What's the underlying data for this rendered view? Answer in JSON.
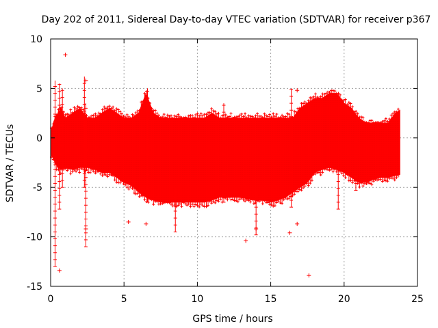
{
  "chart_data": {
    "type": "scatter",
    "title": "Day 202 of 2011, Sidereal Day-to-day VTEC variation (SDTVAR) for receiver p367",
    "xlabel": "GPS time / hours",
    "ylabel": "SDTVAR / TECUs",
    "xlim": [
      0,
      25
    ],
    "ylim": [
      -15,
      10
    ],
    "x_ticks": [
      0,
      5,
      10,
      15,
      20,
      25
    ],
    "x_tick_labels": [
      "0",
      "5",
      "10",
      "15",
      "20",
      "25"
    ],
    "y_ticks": [
      -15,
      -10,
      -5,
      0,
      5,
      10
    ],
    "y_tick_labels": [
      "-15",
      "-10",
      "-5",
      "0",
      "5",
      "10"
    ],
    "grid": true,
    "series_color": "#ff0000",
    "band_envelope": {
      "x": [
        0.0,
        0.3,
        0.5,
        0.7,
        1.0,
        1.5,
        2.0,
        2.5,
        3.0,
        3.5,
        4.0,
        4.5,
        5.0,
        5.5,
        6.0,
        6.5,
        7.0,
        7.5,
        8.0,
        8.5,
        9.0,
        9.5,
        10.0,
        10.5,
        11.0,
        11.5,
        12.0,
        12.5,
        13.0,
        13.5,
        14.0,
        14.5,
        15.0,
        15.5,
        16.0,
        16.5,
        17.0,
        17.5,
        18.0,
        18.5,
        19.0,
        19.5,
        20.0,
        20.5,
        21.0,
        21.5,
        22.0,
        22.5,
        23.0,
        23.5,
        23.8
      ],
      "upper": [
        0.5,
        2.0,
        2.5,
        3.0,
        2.0,
        2.5,
        3.0,
        2.0,
        2.0,
        2.5,
        3.0,
        2.5,
        2.0,
        2.0,
        2.5,
        4.5,
        2.5,
        2.0,
        2.0,
        2.0,
        2.0,
        2.0,
        2.0,
        2.0,
        2.5,
        2.0,
        2.0,
        2.0,
        2.0,
        2.0,
        2.0,
        2.0,
        2.0,
        2.0,
        2.0,
        2.0,
        3.0,
        3.5,
        4.0,
        4.0,
        4.5,
        4.5,
        3.5,
        3.0,
        2.0,
        1.5,
        1.5,
        1.5,
        1.5,
        2.5,
        2.8
      ],
      "lower": [
        -1.5,
        -2.5,
        -3.0,
        -3.2,
        -3.0,
        -3.2,
        -3.0,
        -3.0,
        -3.2,
        -3.5,
        -3.5,
        -4.0,
        -4.5,
        -4.8,
        -5.5,
        -6.0,
        -6.3,
        -6.5,
        -6.5,
        -6.5,
        -6.5,
        -6.5,
        -6.5,
        -6.5,
        -6.3,
        -6.0,
        -6.0,
        -6.0,
        -6.0,
        -6.2,
        -6.3,
        -6.3,
        -6.5,
        -6.3,
        -6.0,
        -5.5,
        -5.0,
        -4.5,
        -3.5,
        -3.2,
        -3.0,
        -3.2,
        -3.5,
        -4.0,
        -4.5,
        -4.5,
        -4.2,
        -4.0,
        -4.0,
        -3.8,
        -3.7
      ]
    },
    "spikes": [
      {
        "x": 0.3,
        "ymin": -13.0,
        "ymax": 5.8
      },
      {
        "x": 0.6,
        "ymin": -7.2,
        "ymax": 5.5
      },
      {
        "x": 0.8,
        "ymin": -5.0,
        "ymax": 5.0
      },
      {
        "x": 2.3,
        "ymin": -5.0,
        "ymax": 6.2
      },
      {
        "x": 2.4,
        "ymin": -11.0,
        "ymax": 3.5
      },
      {
        "x": 6.6,
        "ymin": -6.5,
        "ymax": 5.0
      },
      {
        "x": 8.5,
        "ymin": -9.5,
        "ymax": -5.0
      },
      {
        "x": 11.8,
        "ymin": -6.5,
        "ymax": 3.5
      },
      {
        "x": 14.0,
        "ymin": -9.8,
        "ymax": -5.5
      },
      {
        "x": 16.4,
        "ymin": -7.0,
        "ymax": 5.0
      },
      {
        "x": 19.6,
        "ymin": -7.2,
        "ymax": -3.0
      },
      {
        "x": 20.8,
        "ymin": -5.3,
        "ymax": 1.5
      }
    ],
    "outliers": [
      {
        "x": 1.0,
        "y": 8.4
      },
      {
        "x": 0.6,
        "y": -13.4
      },
      {
        "x": 5.3,
        "y": -8.5
      },
      {
        "x": 6.5,
        "y": -8.7
      },
      {
        "x": 13.3,
        "y": -10.4
      },
      {
        "x": 16.3,
        "y": -9.6
      },
      {
        "x": 16.8,
        "y": -8.7
      },
      {
        "x": 17.6,
        "y": -13.9
      },
      {
        "x": 16.8,
        "y": 4.8
      },
      {
        "x": 2.4,
        "y": 5.8
      },
      {
        "x": 2.4,
        "y": -9.2
      },
      {
        "x": 14.0,
        "y": -9.2
      }
    ]
  }
}
